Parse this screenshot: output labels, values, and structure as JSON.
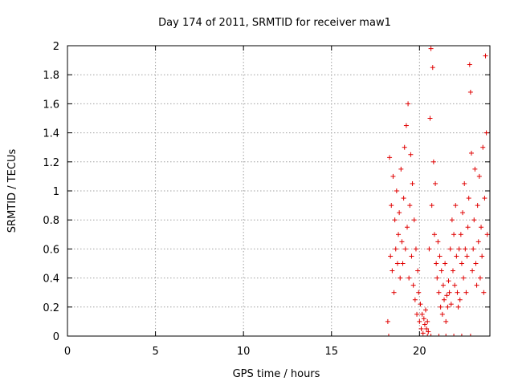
{
  "chart_data": {
    "type": "scatter",
    "title": "Day 174 of 2011, SRMTID for receiver maw1",
    "xlabel": "GPS time / hours",
    "ylabel": "SRMTID / TECUs",
    "xlim": [
      0,
      24
    ],
    "ylim": [
      0,
      2
    ],
    "xticks": [
      "0",
      "5",
      "10",
      "15",
      "20"
    ],
    "xtick_values": [
      0,
      5,
      10,
      15,
      20
    ],
    "yticks": [
      "0",
      "0.2",
      "0.4",
      "0.6",
      "0.8",
      "1",
      "1.2",
      "1.4",
      "1.6",
      "1.8",
      "2"
    ],
    "ytick_values": [
      0,
      0.2,
      0.4,
      0.6,
      0.8,
      1.0,
      1.2,
      1.4,
      1.6,
      1.8,
      2.0
    ],
    "grid": true,
    "marker": "plus",
    "color": "#e00000",
    "series": [
      {
        "x": [
          18.2,
          18.3,
          18.35,
          18.4,
          18.45,
          18.5,
          18.55,
          18.6,
          18.65,
          18.7,
          18.75,
          18.8,
          18.85,
          18.9,
          18.95,
          19.0,
          19.05,
          19.1,
          19.15,
          19.2,
          19.25,
          19.3,
          19.35,
          19.4,
          19.45,
          19.5,
          19.55,
          19.6,
          19.65,
          19.7,
          19.75,
          19.8,
          19.85,
          19.9,
          19.95,
          20.0,
          20.05,
          20.1,
          20.15,
          20.2,
          20.25,
          20.3,
          20.35,
          20.4,
          20.45,
          20.5,
          20.55,
          20.6,
          20.65,
          20.7,
          20.75,
          20.8,
          20.85,
          20.9,
          20.95,
          21.0,
          21.05,
          21.1,
          21.15,
          21.2,
          21.25,
          21.3,
          21.35,
          21.4,
          21.45,
          21.5,
          21.55,
          21.6,
          21.65,
          21.7,
          21.75,
          21.8,
          21.85,
          21.9,
          21.95,
          22.0,
          22.05,
          22.1,
          22.15,
          22.2,
          22.25,
          22.3,
          22.35,
          22.4,
          22.45,
          22.5,
          22.55,
          22.6,
          22.65,
          22.7,
          22.75,
          22.8,
          22.85,
          22.9,
          22.95,
          23.0,
          23.05,
          23.1,
          23.15,
          23.2,
          23.25,
          23.3,
          23.35,
          23.4,
          23.45,
          23.5,
          23.55,
          23.6,
          23.65,
          23.7,
          23.75,
          23.8,
          23.85
        ],
        "y": [
          0.1,
          1.23,
          0.55,
          0.9,
          0.45,
          1.1,
          0.3,
          0.8,
          0.6,
          1.0,
          0.5,
          0.7,
          0.85,
          0.4,
          1.15,
          0.65,
          0.5,
          0.95,
          1.3,
          0.6,
          1.45,
          0.75,
          1.6,
          0.4,
          0.9,
          1.25,
          0.55,
          1.05,
          0.35,
          0.8,
          0.25,
          0.6,
          0.15,
          0.45,
          0.3,
          0.1,
          0.22,
          0.05,
          0.15,
          0.02,
          0.12,
          0.08,
          0.18,
          0.05,
          0.1,
          0.03,
          0.6,
          1.5,
          1.98,
          0.9,
          1.85,
          1.2,
          0.7,
          1.05,
          0.5,
          0.4,
          0.65,
          0.3,
          0.55,
          0.2,
          0.45,
          0.15,
          0.35,
          0.25,
          0.5,
          0.1,
          0.28,
          0.2,
          0.38,
          0.3,
          0.6,
          0.22,
          0.8,
          0.45,
          0.7,
          0.35,
          0.9,
          0.55,
          0.3,
          0.2,
          0.6,
          0.25,
          0.7,
          0.5,
          0.85,
          0.4,
          1.05,
          0.6,
          0.3,
          0.55,
          0.75,
          0.95,
          1.87,
          1.68,
          1.26,
          0.45,
          0.6,
          0.8,
          1.15,
          0.5,
          0.35,
          0.9,
          0.65,
          1.1,
          0.4,
          0.75,
          0.55,
          1.3,
          0.3,
          0.95,
          1.93,
          1.4,
          0.7
        ],
        "series_zero_x": [
          18.25,
          20.45,
          20.65,
          21.1,
          21.5,
          21.95,
          22.4,
          22.9
        ]
      }
    ]
  }
}
